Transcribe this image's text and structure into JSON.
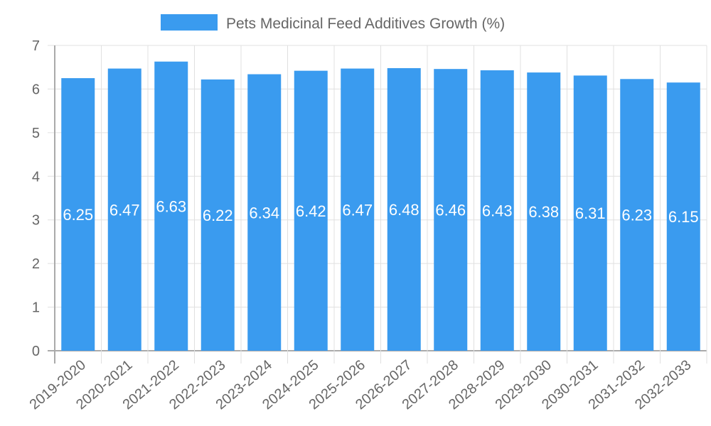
{
  "chart_data": {
    "type": "bar",
    "title": "",
    "legend": {
      "label": "Pets Medicinal Feed Additives Growth (%)",
      "placement": "top"
    },
    "categories": [
      "2019-2020",
      "2020-2021",
      "2021-2022",
      "2022-2023",
      "2023-2024",
      "2024-2025",
      "2025-2026",
      "2026-2027",
      "2027-2028",
      "2028-2029",
      "2029-2030",
      "2030-2031",
      "2031-2032",
      "2032-2033"
    ],
    "series": [
      {
        "name": "Pets Medicinal Feed Additives Growth (%)",
        "values": [
          6.25,
          6.47,
          6.63,
          6.22,
          6.34,
          6.42,
          6.47,
          6.48,
          6.46,
          6.43,
          6.38,
          6.31,
          6.23,
          6.15
        ]
      }
    ],
    "data_labels": [
      "6.25",
      "6.47",
      "6.63",
      "6.22",
      "6.34",
      "6.42",
      "6.47",
      "6.48",
      "6.46",
      "6.43",
      "6.38",
      "6.31",
      "6.23",
      "6.15"
    ],
    "yticks": [
      "0",
      "1",
      "2",
      "3",
      "4",
      "5",
      "6",
      "7"
    ],
    "xlabel": "",
    "ylabel": "",
    "ylim": [
      0,
      7
    ],
    "grid": true,
    "colors": {
      "bar": "#3a9bef",
      "grid": "#e0e0e0",
      "axis": "#aaaaaa",
      "text": "#666666"
    }
  }
}
